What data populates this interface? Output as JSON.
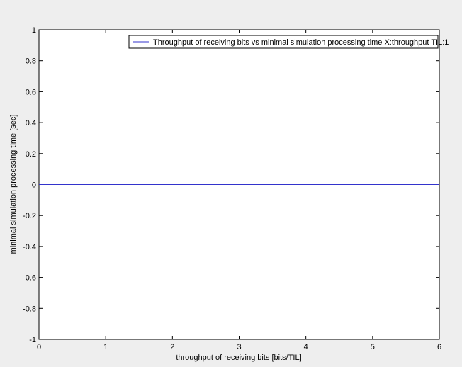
{
  "chart_data": {
    "type": "line",
    "xlabel": "throughput of receiving bits [bits/TIL]",
    "ylabel": "minimal simulation processing time [sec]",
    "xlim": [
      0,
      6
    ],
    "ylim": [
      -1,
      1
    ],
    "xticks": [
      0,
      1,
      2,
      3,
      4,
      5,
      6
    ],
    "yticks": [
      -1,
      -0.8,
      -0.6,
      -0.4,
      -0.2,
      0,
      0.2,
      0.4,
      0.6,
      0.8,
      1
    ],
    "xtick_labels": [
      "0",
      "1",
      "2",
      "3",
      "4",
      "5",
      "6"
    ],
    "ytick_labels": [
      "-1",
      "-0.8",
      "-0.6",
      "-0.4",
      "-0.2",
      "0",
      "0.2",
      "0.4",
      "0.6",
      "0.8",
      "1"
    ],
    "grid": false,
    "legend_position": "top-right",
    "series": [
      {
        "name": "Throughput of receiving bits vs minimal simulation processing time X:throughput TIL:1",
        "color": "#3333cc",
        "x": [
          0,
          6
        ],
        "y": [
          0,
          0
        ]
      }
    ]
  }
}
